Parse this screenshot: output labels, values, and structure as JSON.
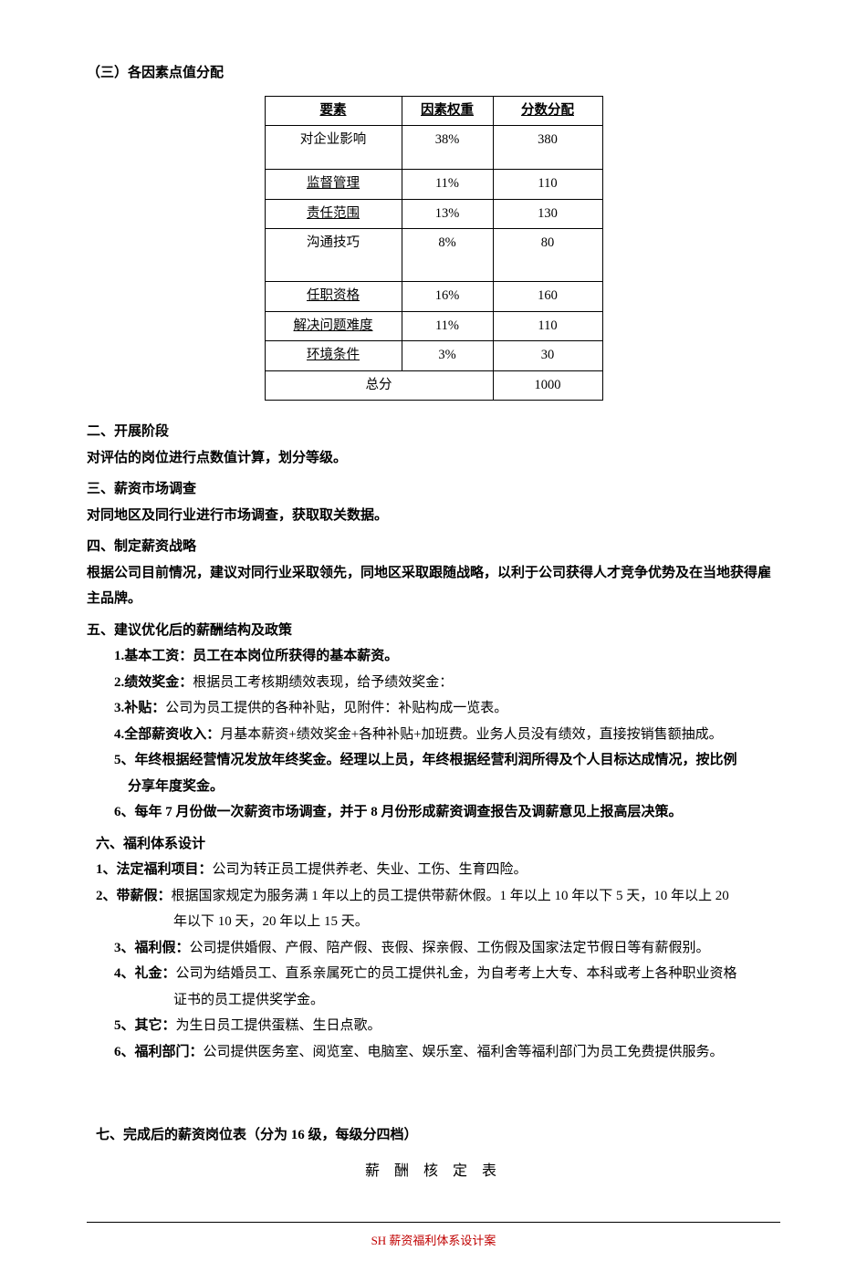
{
  "heading3": "（三）各因素点值分配",
  "table1": {
    "headers": [
      "要素",
      "因素权重",
      "分数分配"
    ],
    "rows": [
      {
        "c1": "对企业影响",
        "c2": "38%",
        "c3": "380",
        "tall": true,
        "underline": false
      },
      {
        "c1": "监督管理",
        "c2": "11%",
        "c3": "110",
        "tall": false,
        "underline": true
      },
      {
        "c1": "责任范围",
        "c2": "13%",
        "c3": "130",
        "tall": false,
        "underline": true
      },
      {
        "c1": "沟通技巧",
        "c2": "8%",
        "c3": "80",
        "tall2": true,
        "underline": false
      },
      {
        "c1": "任职资格",
        "c2": "16%",
        "c3": "160",
        "tall": false,
        "underline": true
      },
      {
        "c1": "解决问题难度",
        "c2": "11%",
        "c3": "110",
        "tall": false,
        "underline": true
      },
      {
        "c1": "环境条件",
        "c2": "3%",
        "c3": "30",
        "tall": false,
        "underline": true
      }
    ],
    "totalLabel": "总分",
    "totalValue": "1000"
  },
  "sec2_title": "二、开展阶段",
  "sec2_body": "对评估的岗位进行点数值计算，划分等级。",
  "sec3_title": "三、薪资市场调查",
  "sec3_body": "对同地区及同行业进行市场调查，获取取关数据。",
  "sec4_title": "四、制定薪资战略",
  "sec4_body": "根据公司目前情况，建议对同行业采取领先，同地区采取跟随战略，以利于公司获得人才竞争优势及在当地获得雇主品牌。",
  "sec5_title": "五、建议优化后的薪酬结构及政策",
  "sec5_items": {
    "i1_label": "1.基本工资：",
    "i1_text": "员工在本岗位所获得的基本薪资。",
    "i2_label": "2.绩效奖金：",
    "i2_text": "根据员工考核期绩效表现，给予绩效奖金：",
    "i3_label": "3.补贴：",
    "i3_text": "公司为员工提供的各种补贴，见附件：补贴构成一览表。",
    "i4_label": "4.全部薪资收入：",
    "i4_text": "月基本薪资+绩效奖金+各种补贴+加班费。业务人员没有绩效，直接按销售额抽成。",
    "i5_line1": "5、年终根据经营情况发放年终奖金。经理以上员，年终根据经营利润所得及个人目标达成情况，按比例",
    "i5_line2": "分享年度奖金。",
    "i6": "6、每年 7 月份做一次薪资市场调查，并于 8 月份形成薪资调查报告及调薪意见上报高层决策。"
  },
  "sec6_title": "六、福利体系设计",
  "sec6_items": {
    "i1_label": "1、法定福利项目：",
    "i1_text": "公司为转正员工提供养老、失业、工伤、生育四险。",
    "i2_label": "2、带薪假：",
    "i2_text": "根据国家规定为服务满 1 年以上的员工提供带薪休假。1 年以上 10 年以下 5 天，10 年以上 20",
    "i2_line2": "年以下 10 天，20 年以上 15 天。",
    "i3_label": "3、福利假：",
    "i3_text": "公司提供婚假、产假、陪产假、丧假、探亲假、工伤假及国家法定节假日等有薪假别。",
    "i4_label": "4、礼金：",
    "i4_text": "公司为结婚员工、直系亲属死亡的员工提供礼金，为自考考上大专、本科或考上各种职业资格",
    "i4_line2": "证书的员工提供奖学金。",
    "i5_label": "5、其它：",
    "i5_text": "为生日员工提供蛋糕、生日点歌。",
    "i6_label": "6、福利部门：",
    "i6_text": "公司提供医务室、阅览室、电脑室、娱乐室、福利舍等福利部门为员工免费提供服务。"
  },
  "sec7_title": "七、完成后的薪资岗位表（分为 16 级，每级分四档）",
  "sec7_subtitle": "薪 酬 核 定 表",
  "footer": "SH 薪资福利体系设计案"
}
